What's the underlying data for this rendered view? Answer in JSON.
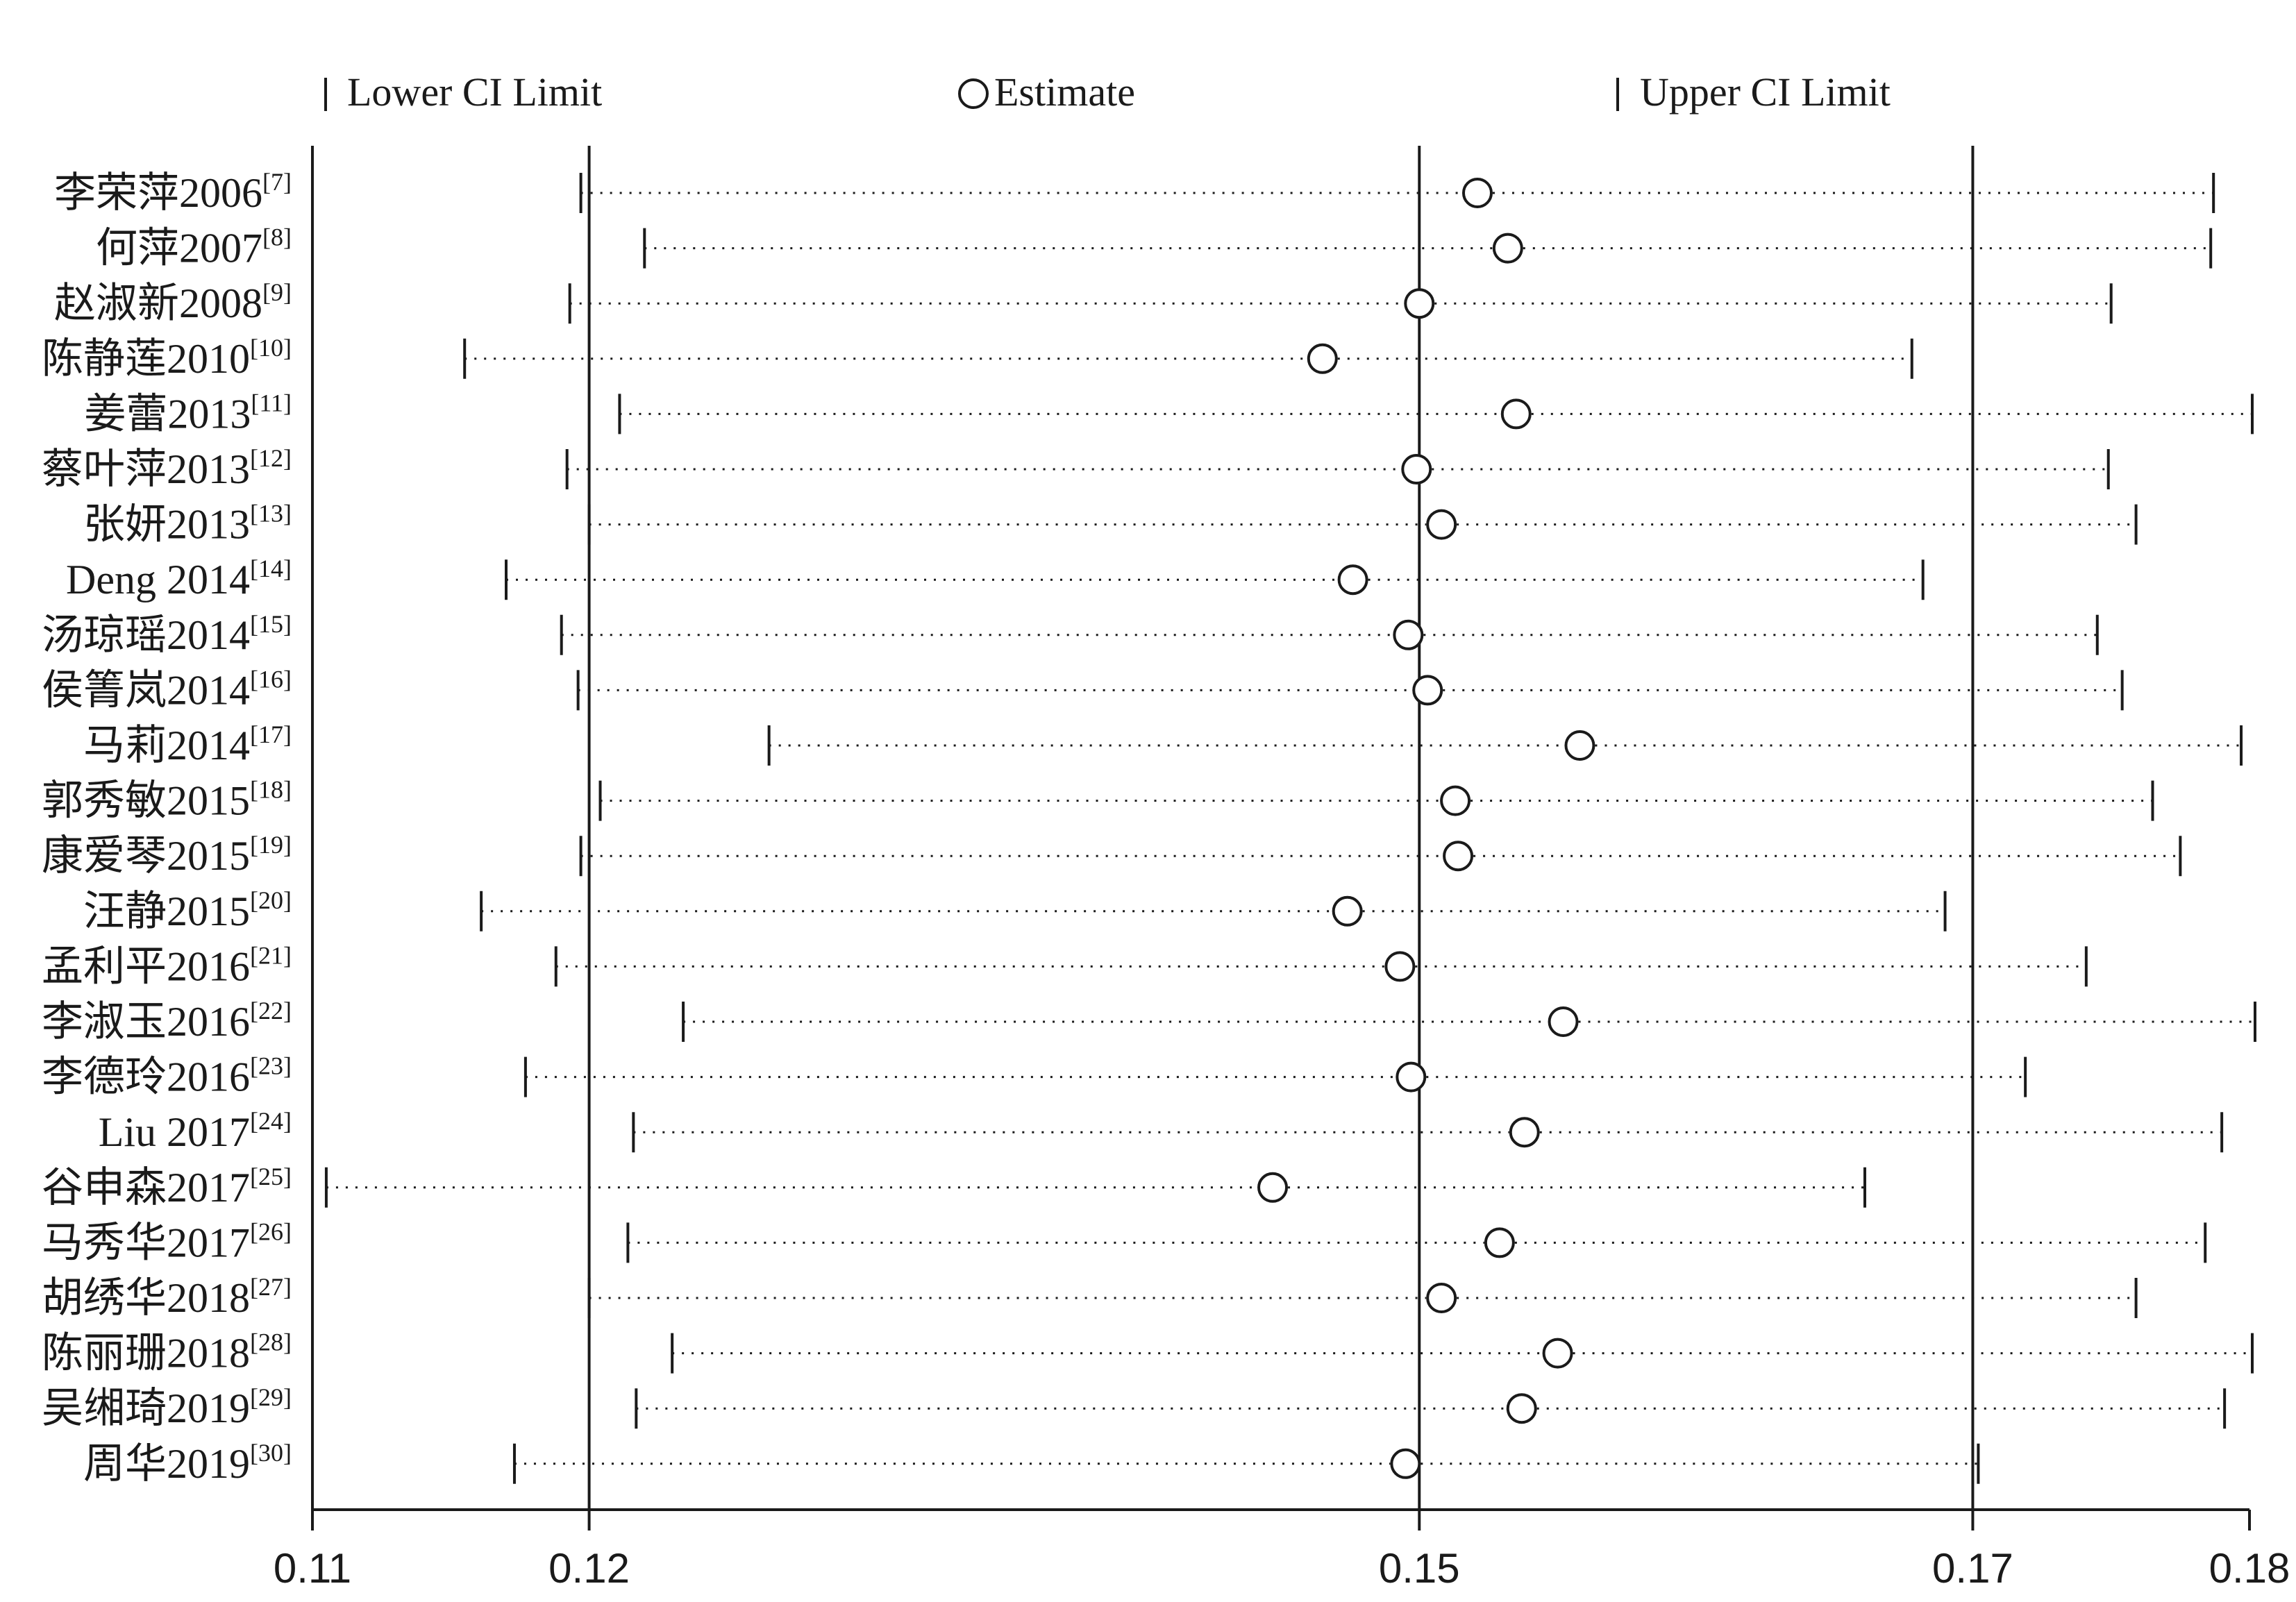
{
  "chart_data": {
    "type": "forest",
    "xlim": [
      0.11,
      0.18
    ],
    "ticks": [
      "0.11",
      "0.12",
      "0.15",
      "0.17",
      "0.18"
    ],
    "tick_values": [
      0.11,
      0.12,
      0.15,
      0.17,
      0.18
    ],
    "reference_lines": [
      0.12,
      0.15,
      0.17
    ],
    "legend": {
      "lower": "Lower CI Limit",
      "estimate": "Estimate",
      "upper": "Upper CI Limit"
    },
    "studies": [
      {
        "name": "李荣萍2006",
        "ref": "[7]",
        "lower": 0.1197,
        "estimate": 0.1521,
        "upper": 0.1787
      },
      {
        "name": "何萍2007",
        "ref": "[8]",
        "lower": 0.122,
        "estimate": 0.1532,
        "upper": 0.1786
      },
      {
        "name": "赵淑新2008",
        "ref": "[9]",
        "lower": 0.1193,
        "estimate": 0.15,
        "upper": 0.175
      },
      {
        "name": "陈静莲2010",
        "ref": "[10]",
        "lower": 0.1155,
        "estimate": 0.1465,
        "upper": 0.1678
      },
      {
        "name": "姜蕾2013",
        "ref": "[11]",
        "lower": 0.1211,
        "estimate": 0.1535,
        "upper": 0.1801
      },
      {
        "name": "蔡叶萍2013",
        "ref": "[12]",
        "lower": 0.1192,
        "estimate": 0.1499,
        "upper": 0.1749
      },
      {
        "name": "张妍2013",
        "ref": "[13]",
        "lower": 0.12,
        "estimate": 0.1508,
        "upper": 0.1759
      },
      {
        "name": "Deng 2014",
        "ref": "[14]",
        "lower": 0.117,
        "estimate": 0.1476,
        "upper": 0.1682
      },
      {
        "name": "汤琼瑶2014",
        "ref": "[15]",
        "lower": 0.119,
        "estimate": 0.1496,
        "upper": 0.1745
      },
      {
        "name": "侯箐岚2014",
        "ref": "[16]",
        "lower": 0.1196,
        "estimate": 0.1503,
        "upper": 0.1754
      },
      {
        "name": "马莉2014",
        "ref": "[17]",
        "lower": 0.1265,
        "estimate": 0.1558,
        "upper": 0.1797
      },
      {
        "name": "郭秀敏2015",
        "ref": "[18]",
        "lower": 0.1204,
        "estimate": 0.1513,
        "upper": 0.1765
      },
      {
        "name": "康爱琴2015",
        "ref": "[19]",
        "lower": 0.1197,
        "estimate": 0.1514,
        "upper": 0.1775
      },
      {
        "name": "汪静2015",
        "ref": "[20]",
        "lower": 0.1161,
        "estimate": 0.1474,
        "upper": 0.169
      },
      {
        "name": "孟利平2016",
        "ref": "[21]",
        "lower": 0.1188,
        "estimate": 0.1493,
        "upper": 0.1741
      },
      {
        "name": "李淑玉2016",
        "ref": "[22]",
        "lower": 0.1234,
        "estimate": 0.1552,
        "upper": 0.1802
      },
      {
        "name": "李德玲2016",
        "ref": "[23]",
        "lower": 0.1177,
        "estimate": 0.1497,
        "upper": 0.1719
      },
      {
        "name": "Liu 2017",
        "ref": "[24]",
        "lower": 0.1216,
        "estimate": 0.1538,
        "upper": 0.179
      },
      {
        "name": "谷申森2017",
        "ref": "[25]",
        "lower": 0.1105,
        "estimate": 0.1447,
        "upper": 0.1661
      },
      {
        "name": "马秀华2017",
        "ref": "[26]",
        "lower": 0.1214,
        "estimate": 0.1529,
        "upper": 0.1784
      },
      {
        "name": "胡绣华2018",
        "ref": "[27]",
        "lower": 0.12,
        "estimate": 0.1508,
        "upper": 0.1759
      },
      {
        "name": "陈丽珊2018",
        "ref": "[28]",
        "lower": 0.123,
        "estimate": 0.155,
        "upper": 0.1801
      },
      {
        "name": "吴缃琦2019",
        "ref": "[29]",
        "lower": 0.1217,
        "estimate": 0.1537,
        "upper": 0.1791
      },
      {
        "name": "周华2019",
        "ref": "[30]",
        "lower": 0.1173,
        "estimate": 0.1495,
        "upper": 0.1702
      }
    ]
  }
}
